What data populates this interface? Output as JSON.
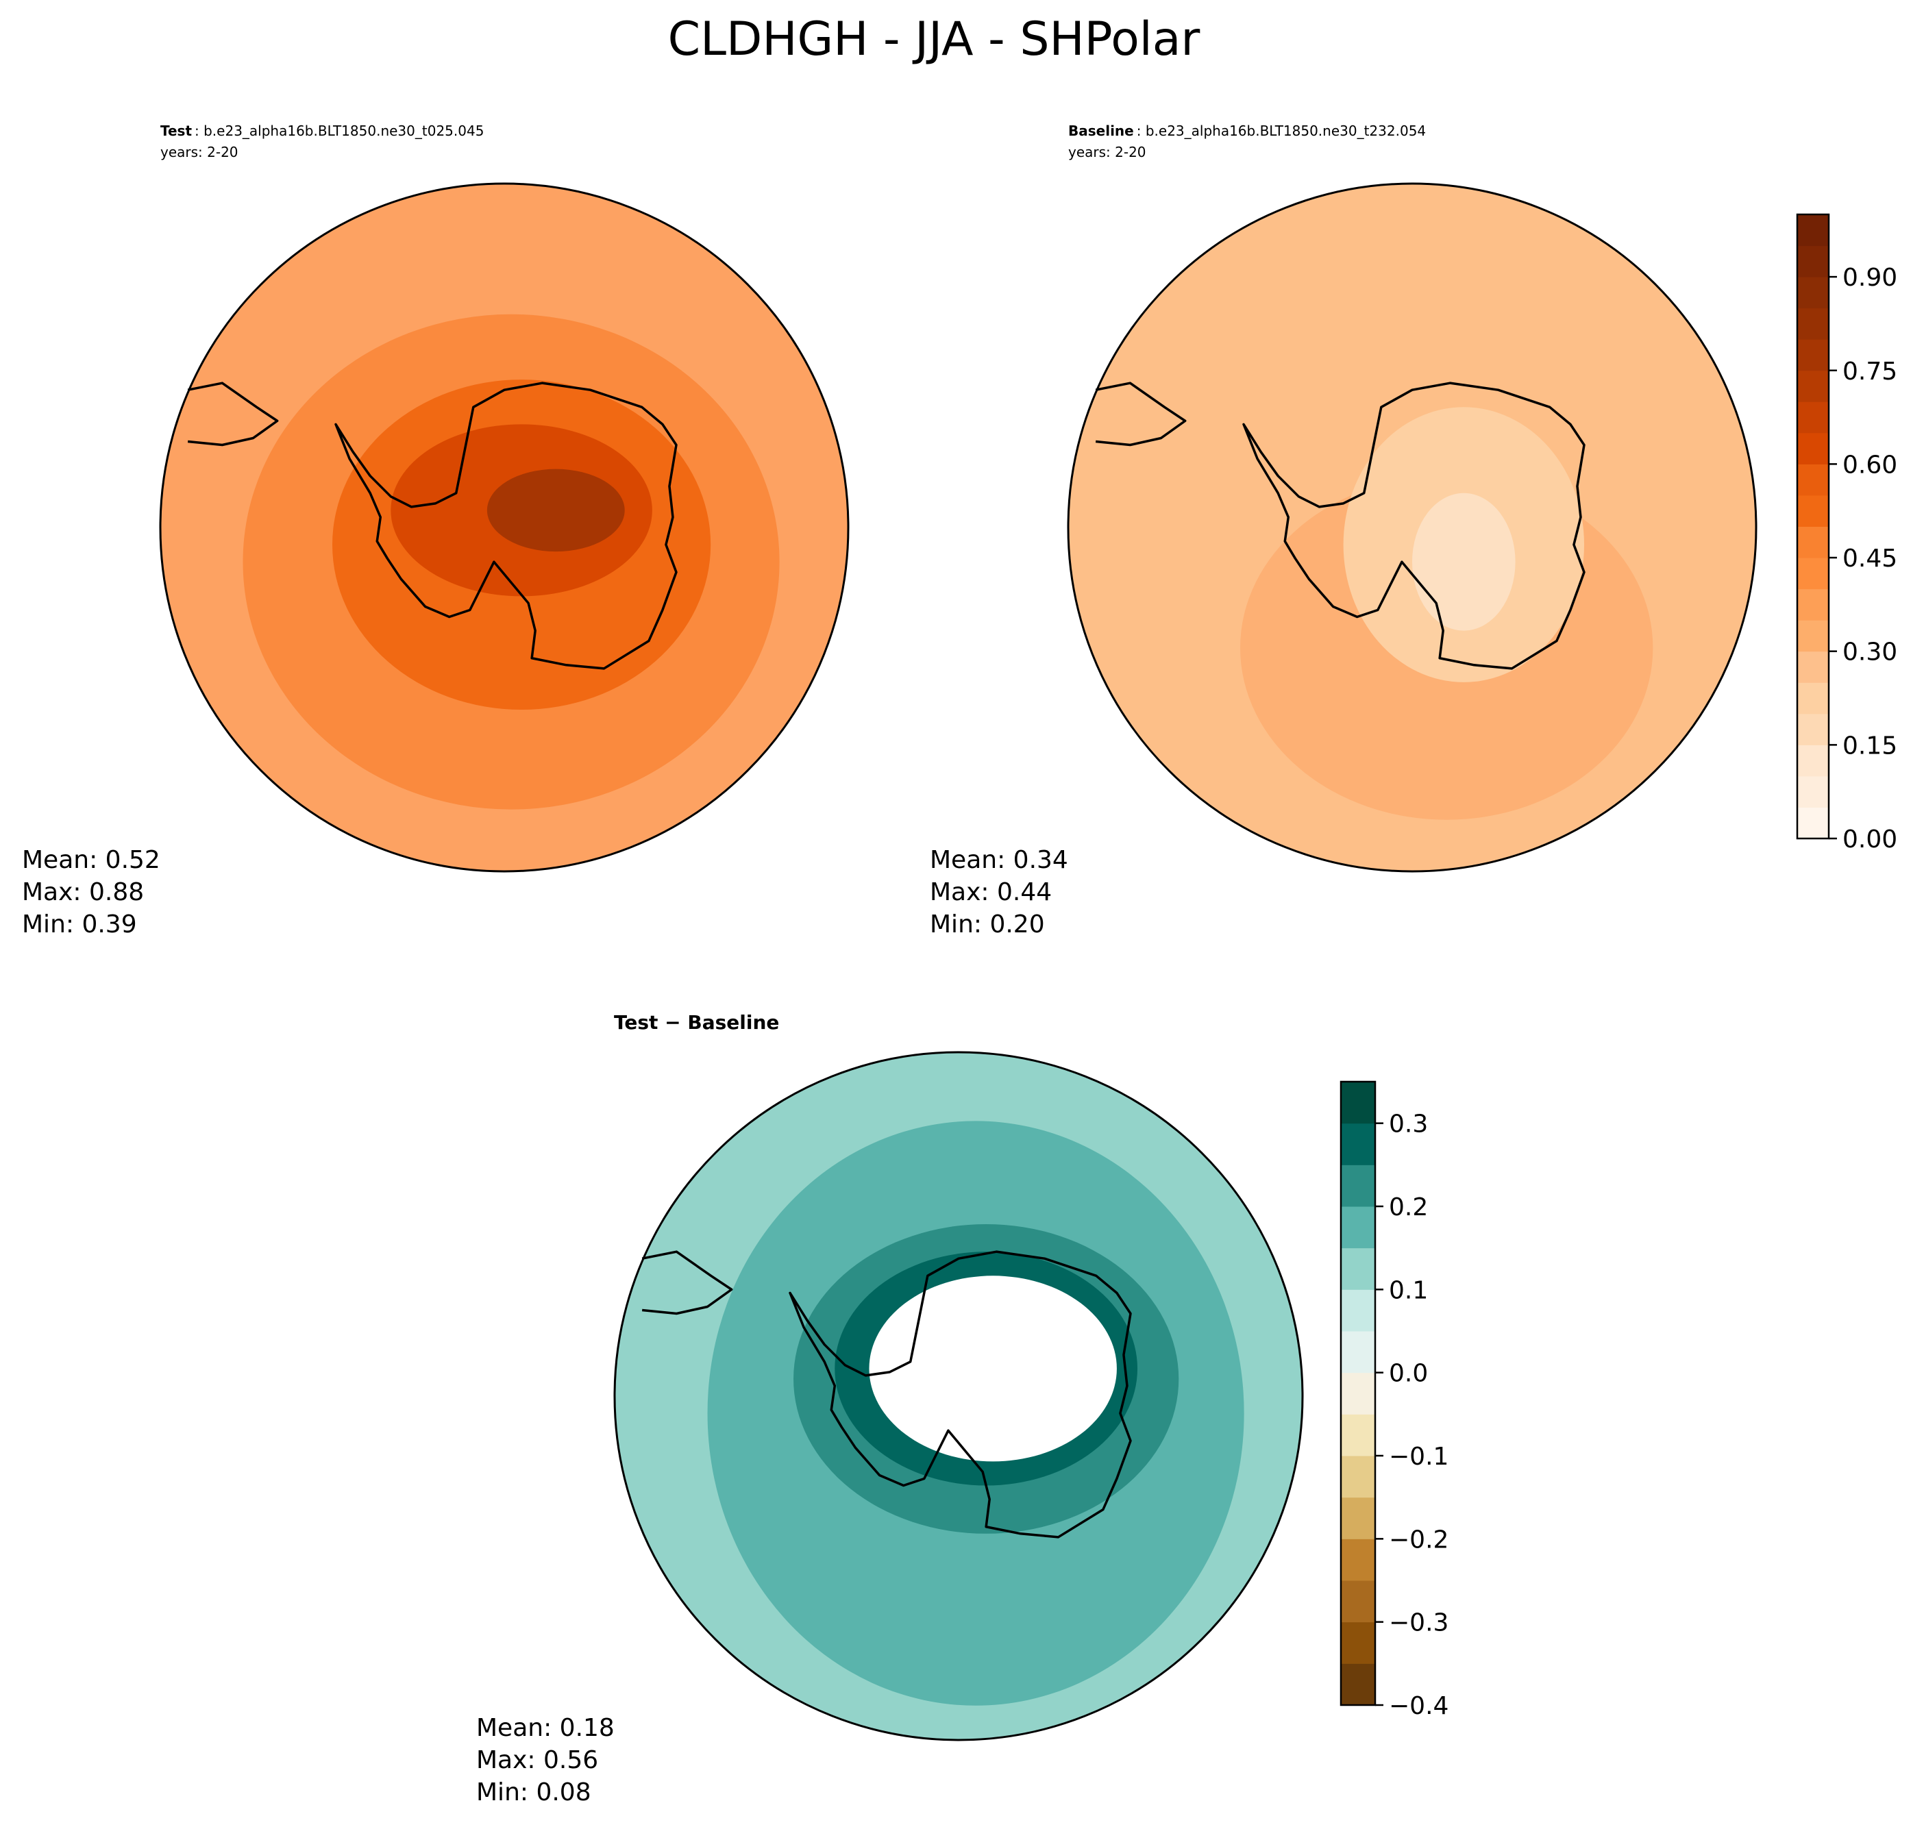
{
  "title": "CLDHGH - JJA - SHPolar",
  "panels": [
    {
      "name": "Test",
      "case": ": b.e23_alpha16b.BLT1850.ne30_t025.045",
      "years": "years: 2-20",
      "stats": [
        "Mean:  0.52",
        "Max:  0.88",
        "Min:  0.39"
      ]
    },
    {
      "name": "Baseline",
      "case": ": b.e23_alpha16b.BLT1850.ne30_t232.054",
      "years": "years: 2-20",
      "stats": [
        "Mean:  0.34",
        "Max:  0.44",
        "Min:  0.20"
      ]
    },
    {
      "name": "Test − Baseline",
      "stats": [
        "Mean:  0.18",
        "Max:  0.56",
        "Min:  0.08"
      ]
    }
  ],
  "colorbars": [
    {
      "levels": [
        0,
        0.05,
        0.1,
        0.15,
        0.2,
        0.25,
        0.3,
        0.35,
        0.4,
        0.45,
        0.5,
        0.55,
        0.6,
        0.65,
        0.7,
        0.75,
        0.8,
        0.85,
        0.9,
        0.95,
        1.0
      ],
      "colors": [
        "#fff5eb",
        "#feeddc",
        "#fee6ce",
        "#fdd9b4",
        "#fdd0a2",
        "#fdc08c",
        "#fdae6b",
        "#fd9f56",
        "#fd8d3c",
        "#f98230",
        "#f16913",
        "#e95e0d",
        "#d94801",
        "#c94202",
        "#b63c02",
        "#a63603",
        "#973103",
        "#8b2d04",
        "#7f2704",
        "#732204"
      ],
      "ticks": [
        {
          "value": 0,
          "label": "0.00"
        },
        {
          "value": 0.15,
          "label": "0.15"
        },
        {
          "value": 0.3,
          "label": "0.30"
        },
        {
          "value": 0.45,
          "label": "0.45"
        },
        {
          "value": 0.6,
          "label": "0.60"
        },
        {
          "value": 0.75,
          "label": "0.75"
        },
        {
          "value": 0.9,
          "label": "0.90"
        }
      ]
    },
    {
      "levels": [
        -0.4,
        -0.35,
        -0.3,
        -0.25,
        -0.2,
        -0.15,
        -0.1,
        -0.05,
        0,
        0.05,
        0.1,
        0.15,
        0.2,
        0.25,
        0.3,
        0.35
      ],
      "colors": [
        "#6b3d0a",
        "#8c510a",
        "#a86a1f",
        "#bf812d",
        "#d6ad5e",
        "#e6cc8a",
        "#f3e5b8",
        "#f6f0e0",
        "#e3f2ef",
        "#c7eae5",
        "#93d3c9",
        "#5ab4ac",
        "#2c8e85",
        "#01665e",
        "#004d40"
      ],
      "ticks": [
        {
          "value": -0.4,
          "label": "−0.4"
        },
        {
          "value": -0.3,
          "label": "−0.3"
        },
        {
          "value": -0.2,
          "label": "−0.2"
        },
        {
          "value": -0.1,
          "label": "−0.1"
        },
        {
          "value": 0,
          "label": "0.0"
        },
        0.1,
        0.2,
        0.3
      ]
    }
  ]
}
